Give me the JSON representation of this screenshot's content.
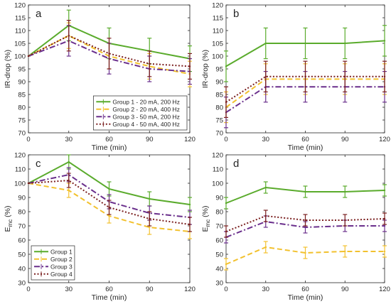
{
  "chart_data": [
    {
      "type": "line",
      "panel_label": "a",
      "x": [
        0,
        30,
        60,
        90,
        120
      ],
      "xlabel": "Time (min)",
      "ylabel": "IR-drop (%)",
      "ylim": [
        70,
        120
      ],
      "yticks": [
        70,
        75,
        80,
        85,
        90,
        95,
        100,
        105,
        110,
        115,
        120
      ],
      "xticks": [
        0,
        30,
        60,
        90,
        120
      ],
      "legend_position": "bottom-right",
      "series": [
        {
          "name": "Group 1 - 20 mA, 200 Hz",
          "color": "#5aab2c",
          "dash": "solid",
          "values": [
            100,
            112,
            105,
            102,
            99
          ],
          "err": [
            0,
            6,
            6,
            5,
            5
          ]
        },
        {
          "name": "Group 2 - 20 mA, 400 Hz",
          "color": "#f2c12e",
          "dash": "dashed",
          "values": [
            100,
            108,
            100,
            96,
            93
          ],
          "err": [
            0,
            5,
            5,
            5,
            5
          ]
        },
        {
          "name": "Group 3 - 50 mA, 200 Hz",
          "color": "#6a2f8c",
          "dash": "dashdot",
          "values": [
            100,
            106,
            99,
            95,
            94
          ],
          "err": [
            0,
            6,
            6,
            5,
            5
          ]
        },
        {
          "name": "Group 4 - 50 mA, 400 Hz",
          "color": "#7a1f1f",
          "dash": "dotted",
          "values": [
            100,
            108,
            101,
            97,
            96
          ],
          "err": [
            0,
            6,
            6,
            5,
            5
          ]
        }
      ]
    },
    {
      "type": "line",
      "panel_label": "b",
      "x": [
        0,
        30,
        60,
        90,
        120
      ],
      "xlabel": "Time (min)",
      "ylabel": "IR-drop (%)",
      "ylim": [
        70,
        120
      ],
      "yticks": [
        70,
        75,
        80,
        85,
        90,
        95,
        100,
        105,
        110,
        115,
        120
      ],
      "xticks": [
        0,
        30,
        60,
        90,
        120
      ],
      "series": [
        {
          "name": "Group 1 - 20 mA, 200 Hz",
          "color": "#5aab2c",
          "dash": "solid",
          "values": [
            96,
            105,
            105,
            105,
            106
          ],
          "err": [
            6,
            6,
            6,
            6,
            6
          ]
        },
        {
          "name": "Group 2 - 20 mA, 400 Hz",
          "color": "#f2c12e",
          "dash": "dashed",
          "values": [
            80,
            91,
            91,
            91,
            91
          ],
          "err": [
            6,
            6,
            6,
            6,
            6
          ]
        },
        {
          "name": "Group 3 - 50 mA, 200 Hz",
          "color": "#6a2f8c",
          "dash": "dashdot",
          "values": [
            78,
            88,
            88,
            88,
            88
          ],
          "err": [
            6,
            6,
            6,
            6,
            6
          ]
        },
        {
          "name": "Group 4 - 50 mA, 400 Hz",
          "color": "#7a1f1f",
          "dash": "dotted",
          "values": [
            82,
            92,
            92,
            92,
            92
          ],
          "err": [
            6,
            6,
            6,
            6,
            6
          ]
        }
      ]
    },
    {
      "type": "line",
      "panel_label": "c",
      "x": [
        0,
        30,
        60,
        90,
        120
      ],
      "xlabel": "Time (min)",
      "ylabel": "E",
      "ylabel_sub": "mc",
      "ylabel_tail": " (%)",
      "ylim": [
        30,
        120
      ],
      "yticks": [
        30,
        40,
        50,
        60,
        70,
        80,
        90,
        100,
        110,
        120
      ],
      "xticks": [
        0,
        30,
        60,
        90,
        120
      ],
      "legend_position": "bottom-left",
      "series": [
        {
          "name": "Group 1",
          "color": "#5aab2c",
          "dash": "solid",
          "values": [
            100,
            115,
            96,
            89,
            85
          ],
          "err": [
            0,
            5,
            5,
            5,
            5
          ]
        },
        {
          "name": "Group 2",
          "color": "#f2c12e",
          "dash": "dashed",
          "values": [
            100,
            95,
            77,
            69,
            66
          ],
          "err": [
            0,
            5,
            5,
            5,
            5
          ]
        },
        {
          "name": "Group 3",
          "color": "#6a2f8c",
          "dash": "dashdot",
          "values": [
            100,
            106,
            87,
            79,
            76
          ],
          "err": [
            0,
            5,
            5,
            5,
            5
          ]
        },
        {
          "name": "Group 4",
          "color": "#7a1f1f",
          "dash": "dotted",
          "values": [
            100,
            102,
            83,
            75,
            71
          ],
          "err": [
            0,
            5,
            5,
            5,
            5
          ]
        }
      ]
    },
    {
      "type": "line",
      "panel_label": "d",
      "x": [
        0,
        30,
        60,
        90,
        120
      ],
      "xlabel": "Time (min)",
      "ylabel": "E",
      "ylabel_sub": "mc",
      "ylabel_tail": " (%)",
      "ylim": [
        30,
        120
      ],
      "yticks": [
        30,
        40,
        50,
        60,
        70,
        80,
        90,
        100,
        110,
        120
      ],
      "xticks": [
        0,
        30,
        60,
        90,
        120
      ],
      "series": [
        {
          "name": "Group 1",
          "color": "#5aab2c",
          "dash": "solid",
          "values": [
            86,
            97,
            94,
            94,
            95
          ],
          "err": [
            4,
            4,
            4,
            4,
            4
          ]
        },
        {
          "name": "Group 2",
          "color": "#f2c12e",
          "dash": "dashed",
          "values": [
            43,
            55,
            51,
            52,
            52
          ],
          "err": [
            4,
            4,
            4,
            4,
            4
          ]
        },
        {
          "name": "Group 3",
          "color": "#6a2f8c",
          "dash": "dashdot",
          "values": [
            62,
            73,
            69,
            70,
            70
          ],
          "err": [
            4,
            4,
            4,
            4,
            4
          ]
        },
        {
          "name": "Group 4",
          "color": "#7a1f1f",
          "dash": "dotted",
          "values": [
            66,
            77,
            74,
            74,
            75
          ],
          "err": [
            4,
            4,
            4,
            4,
            4
          ]
        }
      ]
    }
  ]
}
